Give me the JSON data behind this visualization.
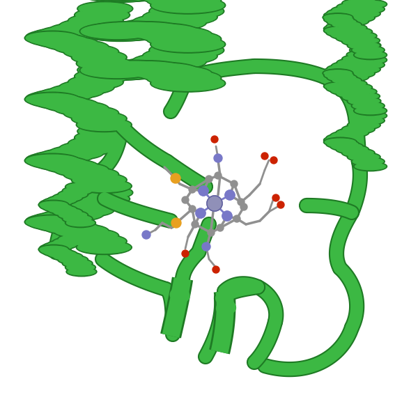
{
  "background_color": "#ffffff",
  "protein_color": "#3cb843",
  "protein_edge_color": "#2a9e30",
  "protein_shadow_color": "#1e7a24",
  "heme_color": "#909090",
  "nitrogen_color": "#7878c8",
  "oxygen_color": "#cc2200",
  "sulfur_color": "#e8a020",
  "carbon_color": "#909090",
  "iron_color": "#9090b8",
  "figsize": [
    6.0,
    6.0
  ],
  "dpi": 100
}
